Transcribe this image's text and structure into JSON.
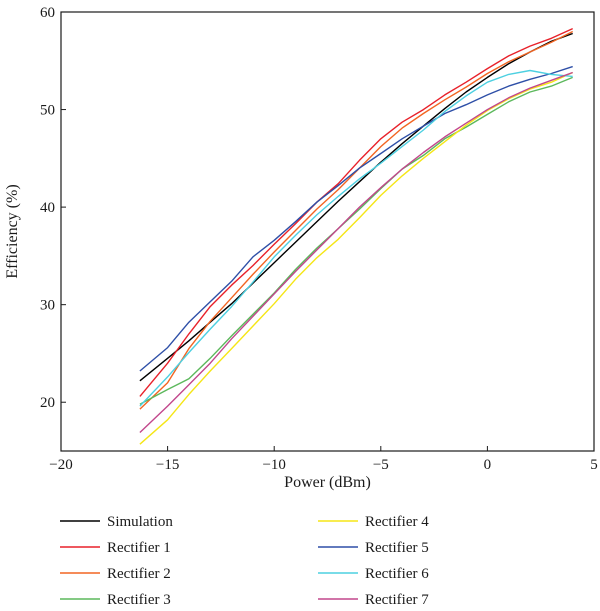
{
  "chart_data": {
    "type": "line",
    "xlabel": "Power (dBm)",
    "ylabel": "Efficiency (%)",
    "xlim": [
      -20,
      5
    ],
    "ylim": [
      15,
      60
    ],
    "xticks": [
      -20,
      -15,
      -10,
      -5,
      0,
      5
    ],
    "xtick_labels": [
      "−20",
      "−15",
      "−10",
      "−5",
      "0",
      "5"
    ],
    "yticks": [
      20,
      30,
      40,
      50,
      60
    ],
    "ytick_labels": [
      "20",
      "30",
      "40",
      "50",
      "60"
    ],
    "grid": false,
    "legend_position": "bottom",
    "series": [
      {
        "name": "Simulation",
        "color": "#000000",
        "x": [
          -16.3,
          -15,
          -14,
          -13,
          -12,
          -11,
          -10,
          -9,
          -8,
          -7,
          -6,
          -5,
          -4,
          -3,
          -2,
          -1,
          0,
          1,
          2,
          3,
          4
        ],
        "y": [
          22.2,
          24.5,
          26.3,
          28.2,
          30.1,
          32.2,
          34.3,
          36.4,
          38.5,
          40.6,
          42.6,
          44.6,
          46.5,
          48.3,
          50.1,
          51.8,
          53.3,
          54.7,
          55.9,
          57.0,
          57.8
        ]
      },
      {
        "name": "Rectifier 1",
        "color": "#e8212a",
        "x": [
          -16.3,
          -15,
          -14,
          -13,
          -12,
          -11,
          -10,
          -9,
          -8,
          -7,
          -6,
          -5,
          -4,
          -3,
          -2,
          -1,
          0,
          1,
          2,
          3,
          4
        ],
        "y": [
          20.6,
          24.0,
          27.0,
          29.8,
          32.0,
          34.0,
          36.2,
          38.3,
          40.5,
          42.4,
          44.8,
          47.0,
          48.7,
          50.0,
          51.5,
          52.8,
          54.2,
          55.5,
          56.5,
          57.3,
          58.3
        ]
      },
      {
        "name": "Rectifier 2",
        "color": "#f26522",
        "x": [
          -16.3,
          -15,
          -14,
          -13,
          -12,
          -11,
          -10,
          -9,
          -8,
          -7,
          -6,
          -5,
          -4,
          -3,
          -2,
          -1,
          0,
          1,
          2,
          3,
          4
        ],
        "y": [
          19.3,
          22.0,
          25.5,
          28.3,
          30.7,
          33.1,
          35.4,
          37.6,
          39.8,
          41.8,
          44.0,
          46.2,
          48.1,
          49.6,
          51.0,
          52.3,
          53.7,
          54.9,
          55.9,
          56.9,
          58.0
        ]
      },
      {
        "name": "Rectifier 3",
        "color": "#5cb85c",
        "x": [
          -16.3,
          -15,
          -14,
          -13,
          -12,
          -11,
          -10,
          -9,
          -8,
          -7,
          -6,
          -5,
          -4,
          -3,
          -2,
          -1,
          0,
          1,
          2,
          3,
          4
        ],
        "y": [
          19.8,
          21.3,
          22.4,
          24.5,
          26.8,
          29.0,
          31.2,
          33.6,
          35.8,
          37.8,
          39.8,
          41.9,
          43.9,
          45.3,
          47.0,
          48.2,
          49.5,
          50.8,
          51.8,
          52.4,
          53.3
        ]
      },
      {
        "name": "Rectifier 4",
        "color": "#f5e616",
        "x": [
          -16.3,
          -15,
          -14,
          -13,
          -12,
          -11,
          -10,
          -9,
          -8,
          -7,
          -6,
          -5,
          -4,
          -3,
          -2,
          -1,
          0,
          1,
          2,
          3,
          4
        ],
        "y": [
          15.7,
          18.2,
          20.8,
          23.2,
          25.5,
          27.8,
          30.1,
          32.6,
          34.8,
          36.7,
          38.9,
          41.2,
          43.2,
          45.0,
          46.7,
          48.4,
          49.9,
          51.1,
          52.1,
          52.8,
          53.8
        ]
      },
      {
        "name": "Rectifier 5",
        "color": "#2e4fa7",
        "x": [
          -16.3,
          -15,
          -14,
          -13,
          -12,
          -11,
          -10,
          -9,
          -8,
          -7,
          -6,
          -5,
          -4,
          -3,
          -2,
          -1,
          0,
          1,
          2,
          3,
          4
        ],
        "y": [
          23.2,
          25.6,
          28.2,
          30.3,
          32.4,
          34.9,
          36.6,
          38.5,
          40.5,
          42.2,
          44.0,
          45.5,
          47.0,
          48.3,
          49.6,
          50.5,
          51.5,
          52.4,
          53.1,
          53.7,
          54.4
        ]
      },
      {
        "name": "Rectifier 6",
        "color": "#4dd0e1",
        "x": [
          -16.3,
          -15,
          -14,
          -13,
          -12,
          -11,
          -10,
          -9,
          -8,
          -7,
          -6,
          -5,
          -4,
          -3,
          -2,
          -1,
          0,
          1,
          2,
          3,
          4
        ],
        "y": [
          19.6,
          22.6,
          25.1,
          27.5,
          29.8,
          32.3,
          34.9,
          37.1,
          39.2,
          41.1,
          42.9,
          44.5,
          46.2,
          47.9,
          49.8,
          51.4,
          52.8,
          53.6,
          54.0,
          53.6,
          53.4
        ]
      },
      {
        "name": "Rectifier 7",
        "color": "#c2478c",
        "x": [
          -16.3,
          -15,
          -14,
          -13,
          -12,
          -11,
          -10,
          -9,
          -8,
          -7,
          -6,
          -5,
          -4,
          -3,
          -2,
          -1,
          0,
          1,
          2,
          3,
          4
        ],
        "y": [
          16.9,
          19.6,
          21.8,
          24.0,
          26.5,
          28.8,
          31.1,
          33.4,
          35.6,
          37.8,
          40.0,
          42.0,
          43.9,
          45.6,
          47.2,
          48.6,
          50.0,
          51.2,
          52.2,
          53.0,
          53.8
        ]
      }
    ]
  }
}
